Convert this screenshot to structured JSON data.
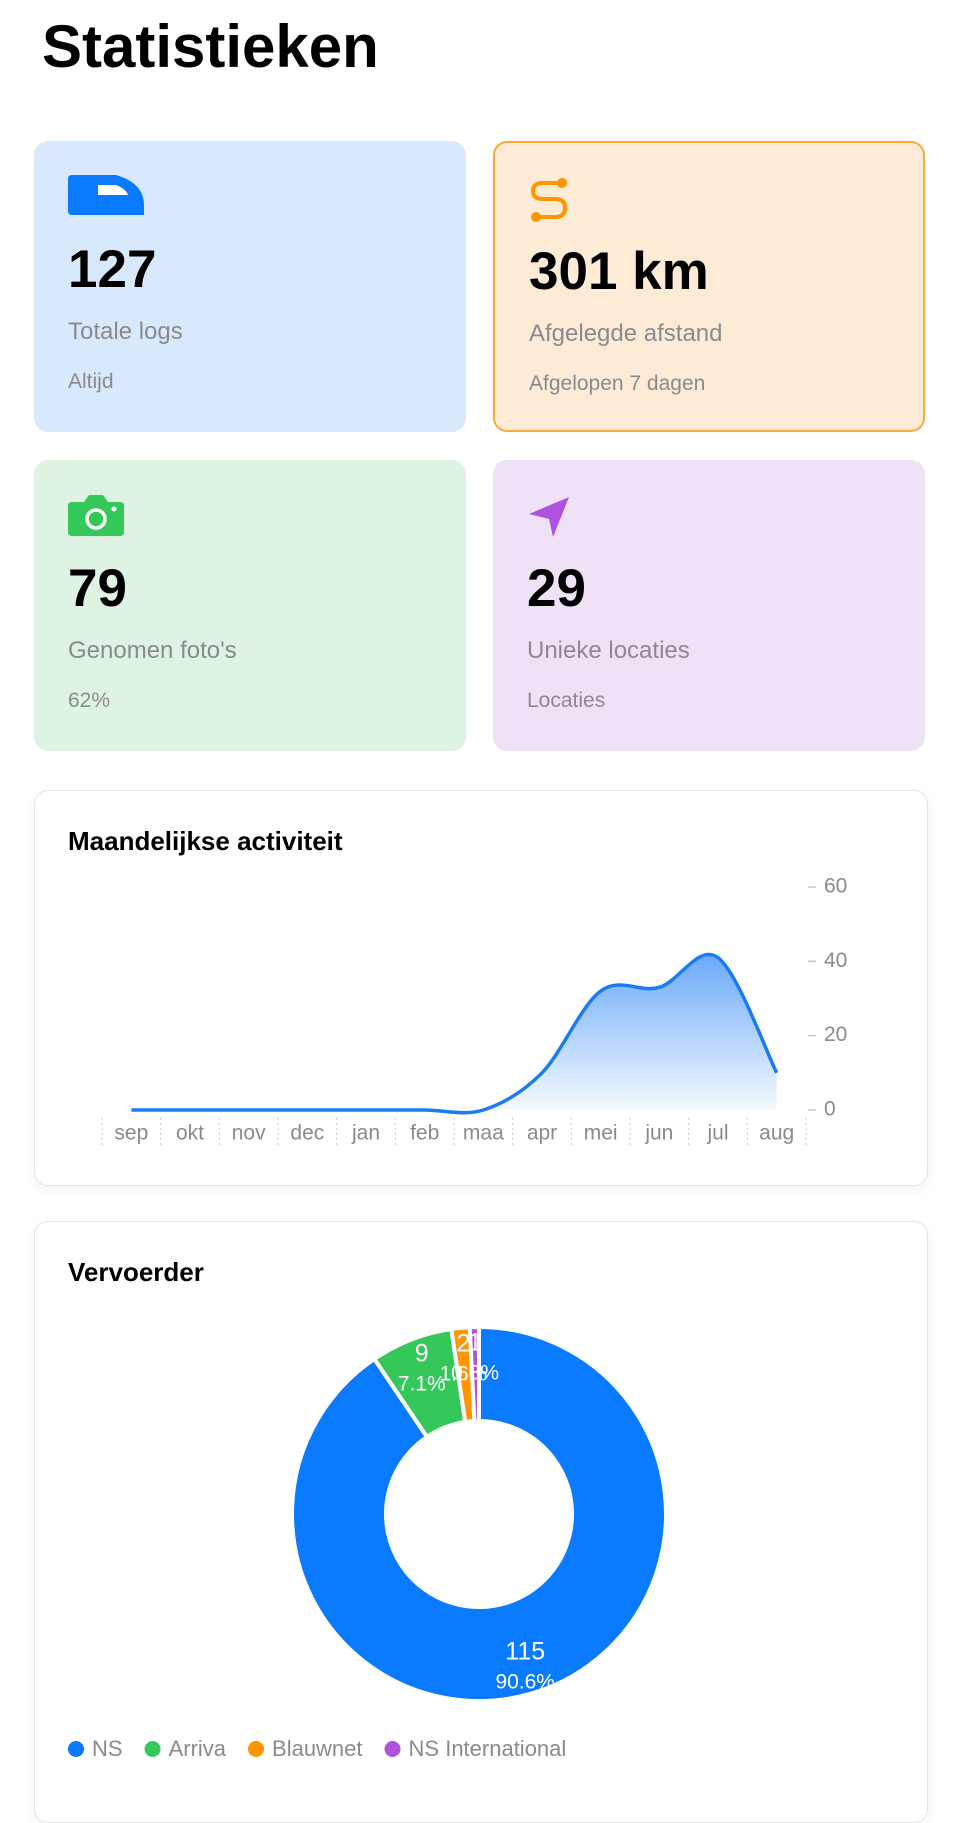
{
  "header": {
    "title": "Statistieken"
  },
  "cards": [
    {
      "value": "127",
      "label": "Totale logs",
      "sub": "Altijd"
    },
    {
      "value": "301 km",
      "label": "Afgelegde afstand",
      "sub": "Afgelopen 7 dagen"
    },
    {
      "value": "79",
      "label": "Genomen foto's",
      "sub": "62%"
    },
    {
      "value": "29",
      "label": "Unieke locaties",
      "sub": "Locaties"
    }
  ],
  "chart_data": [
    {
      "type": "area",
      "title": "Maandelijkse activiteit",
      "categories": [
        "sep",
        "okt",
        "nov",
        "dec",
        "jan",
        "feb",
        "maa",
        "apr",
        "mei",
        "jun",
        "jul",
        "aug"
      ],
      "values": [
        0,
        0,
        0,
        0,
        0,
        0,
        0,
        10,
        32,
        33,
        41,
        10
      ],
      "color": "#1a7cf5",
      "ylim": [
        0,
        60
      ],
      "yticks": [
        0,
        20,
        40,
        60
      ]
    },
    {
      "type": "pie",
      "title": "Vervoerder",
      "categories": [
        "NS",
        "Arriva",
        "Blauwnet",
        "NS International"
      ],
      "values": [
        115,
        9,
        2,
        1
      ],
      "value_labels": [
        "90.6%",
        "7.1%",
        "1.6%",
        "0.8%"
      ],
      "colors": [
        "#0a7aff",
        "#34c759",
        "#ff9500",
        "#af52de"
      ]
    }
  ]
}
